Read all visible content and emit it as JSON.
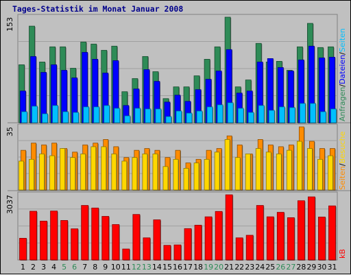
{
  "title": "Tages-Statistik im Monat Januar 2008",
  "colors": {
    "anfragen": "#2e8b57",
    "dateien": "#0000ff",
    "seiten": "#00bfff",
    "besuche": "#ffd700",
    "seiten_orange": "#ff8c00",
    "kb": "#ff0000",
    "weekend_day": "#2e8b57",
    "weekday": "#000000",
    "background": "#c0c0c0"
  },
  "chart_data": [
    {
      "type": "bar",
      "panel": "hits",
      "ymax_label": "153",
      "ylim": [
        0,
        153
      ],
      "categories": [
        "1",
        "2",
        "3",
        "4",
        "5",
        "6",
        "7",
        "8",
        "9",
        "10",
        "11",
        "12",
        "13",
        "14",
        "15",
        "16",
        "17",
        "18",
        "19",
        "20",
        "21",
        "22",
        "23",
        "24",
        "25",
        "26",
        "27",
        "28",
        "29",
        "30",
        "31"
      ],
      "legend": [
        "Anfragen",
        "/",
        "Dateien",
        "/",
        "Seiten"
      ],
      "series": [
        {
          "name": "Anfragen",
          "values": [
            84,
            140,
            88,
            110,
            110,
            79,
            117,
            114,
            105,
            111,
            45,
            64,
            96,
            74,
            35,
            52,
            52,
            68,
            92,
            110,
            153,
            52,
            62,
            115,
            88,
            89,
            76,
            110,
            144,
            109,
            110
          ]
        },
        {
          "name": "Dateien",
          "values": [
            46,
            96,
            73,
            84,
            76,
            65,
            102,
            92,
            72,
            90,
            25,
            49,
            77,
            60,
            30,
            40,
            31,
            48,
            63,
            75,
            106,
            43,
            46,
            88,
            93,
            80,
            75,
            91,
            111,
            94,
            95
          ]
        },
        {
          "name": "Seiten",
          "values": [
            16,
            24,
            13,
            25,
            16,
            15,
            23,
            23,
            25,
            21,
            10,
            21,
            20,
            20,
            9,
            17,
            14,
            17,
            23,
            26,
            29,
            21,
            15,
            25,
            18,
            23,
            22,
            28,
            28,
            16,
            20
          ]
        }
      ]
    },
    {
      "type": "bar",
      "panel": "visits",
      "ymax_label": "35",
      "ylim": [
        0,
        35
      ],
      "categories": [
        "1",
        "2",
        "3",
        "4",
        "5",
        "6",
        "7",
        "8",
        "9",
        "10",
        "11",
        "12",
        "13",
        "14",
        "15",
        "16",
        "17",
        "18",
        "19",
        "20",
        "21",
        "22",
        "23",
        "24",
        "25",
        "26",
        "27",
        "28",
        "29",
        "30",
        "31"
      ],
      "legend": [
        "Seiten",
        "/",
        "Besuche"
      ],
      "series": [
        {
          "name": "Besuche",
          "values": [
            16,
            17,
            20,
            19,
            23,
            18,
            20,
            24,
            24,
            20,
            16,
            18,
            20,
            20,
            13,
            17,
            12,
            15,
            17,
            21,
            28,
            18,
            20,
            23,
            21,
            20,
            22,
            27,
            23,
            17,
            19
          ]
        },
        {
          "name": "Seiten",
          "values": [
            22,
            26,
            25,
            26,
            23,
            21,
            25,
            26,
            28,
            24,
            18,
            22,
            23,
            22,
            18,
            22,
            15,
            17,
            22,
            23,
            30,
            25,
            20,
            28,
            25,
            24,
            25,
            35,
            27,
            23,
            23
          ]
        }
      ]
    },
    {
      "type": "bar",
      "panel": "kb",
      "ymax_label": "3037",
      "ylim": [
        0,
        3037
      ],
      "categories": [
        "1",
        "2",
        "3",
        "4",
        "5",
        "6",
        "7",
        "8",
        "9",
        "10",
        "11",
        "12",
        "13",
        "14",
        "15",
        "16",
        "17",
        "18",
        "19",
        "20",
        "21",
        "22",
        "23",
        "24",
        "25",
        "26",
        "27",
        "28",
        "29",
        "30",
        "31"
      ],
      "legend": [
        "kB"
      ],
      "series": [
        {
          "name": "kB",
          "values": [
            1010,
            2270,
            1810,
            2280,
            1840,
            1450,
            2540,
            2420,
            2030,
            1650,
            510,
            2120,
            1030,
            1870,
            680,
            700,
            1460,
            1620,
            2010,
            2260,
            3037,
            1030,
            1150,
            2540,
            2010,
            2220,
            1970,
            2760,
            2940,
            2000,
            2520
          ]
        }
      ]
    }
  ],
  "weekend_days": [
    "5",
    "6",
    "12",
    "13",
    "19",
    "20",
    "26",
    "27"
  ]
}
